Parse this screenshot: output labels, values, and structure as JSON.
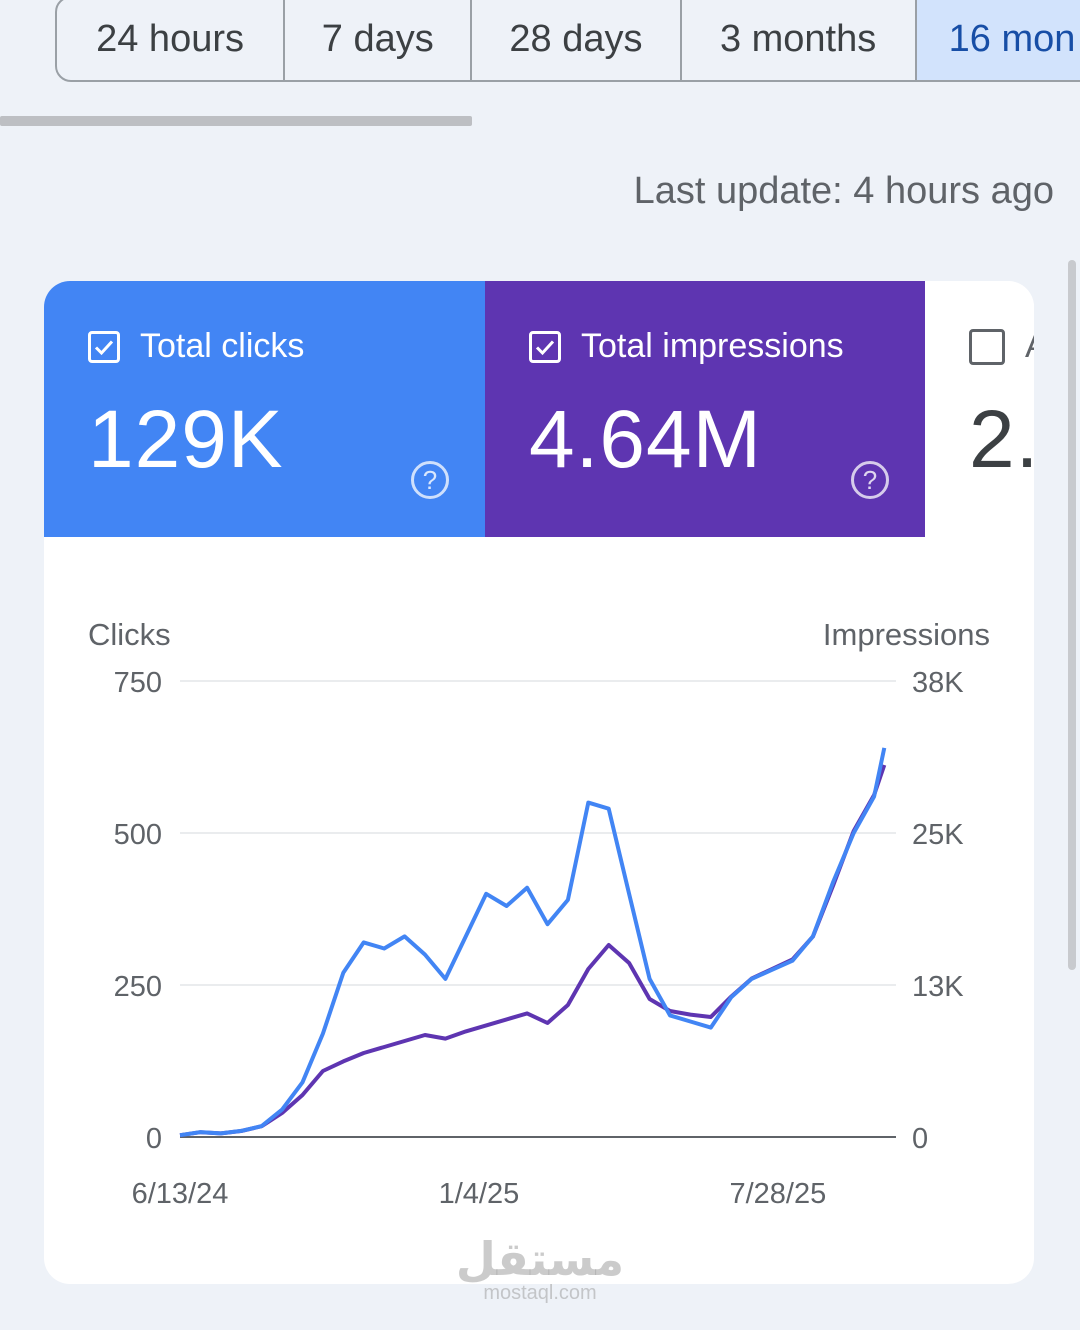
{
  "range_tabs": [
    {
      "label": "24 hours",
      "active": false
    },
    {
      "label": "7 days",
      "active": false
    },
    {
      "label": "28 days",
      "active": false
    },
    {
      "label": "3 months",
      "active": false
    },
    {
      "label": "16 mon",
      "active": true
    }
  ],
  "last_update": "Last update: 4 hours ago",
  "metrics": {
    "clicks": {
      "label": "Total clicks",
      "value": "129K",
      "checked": true,
      "color": "#4285f4"
    },
    "impressions": {
      "label": "Total impressions",
      "value": "4.64M",
      "checked": true,
      "color": "#5e35b1"
    },
    "third": {
      "label": "A",
      "value": "2.",
      "checked": false
    }
  },
  "chart_data": {
    "type": "line",
    "left_axis_title": "Clicks",
    "right_axis_title": "Impressions",
    "left_ticks": [
      "0",
      "250",
      "500",
      "750"
    ],
    "right_ticks": [
      "0",
      "13K",
      "25K",
      "38K"
    ],
    "ylim_left": [
      0,
      750
    ],
    "ylim_right": [
      0,
      38000
    ],
    "x_tick_labels": [
      "6/13/24",
      "1/4/25",
      "7/28/25"
    ],
    "x_tick_dates": [
      "2024-06-13",
      "2025-01-04",
      "2025-07-28"
    ],
    "grid": true,
    "series": [
      {
        "name": "Clicks",
        "axis": "left",
        "color": "#4285f4",
        "points": [
          [
            "2024-06-13",
            3
          ],
          [
            "2024-06-27",
            8
          ],
          [
            "2024-07-11",
            6
          ],
          [
            "2024-07-25",
            10
          ],
          [
            "2024-08-08",
            18
          ],
          [
            "2024-08-22",
            45
          ],
          [
            "2024-09-05",
            90
          ],
          [
            "2024-09-19",
            170
          ],
          [
            "2024-10-03",
            270
          ],
          [
            "2024-10-17",
            320
          ],
          [
            "2024-10-31",
            310
          ],
          [
            "2024-11-14",
            330
          ],
          [
            "2024-11-28",
            300
          ],
          [
            "2024-12-12",
            260
          ],
          [
            "2024-12-26",
            330
          ],
          [
            "2025-01-09",
            400
          ],
          [
            "2025-01-23",
            380
          ],
          [
            "2025-02-06",
            410
          ],
          [
            "2025-02-20",
            350
          ],
          [
            "2025-03-06",
            390
          ],
          [
            "2025-03-20",
            550
          ],
          [
            "2025-04-03",
            540
          ],
          [
            "2025-04-17",
            400
          ],
          [
            "2025-05-01",
            260
          ],
          [
            "2025-05-15",
            200
          ],
          [
            "2025-05-29",
            190
          ],
          [
            "2025-06-12",
            180
          ],
          [
            "2025-06-26",
            230
          ],
          [
            "2025-07-10",
            260
          ],
          [
            "2025-07-24",
            275
          ],
          [
            "2025-08-07",
            290
          ],
          [
            "2025-08-21",
            330
          ],
          [
            "2025-09-04",
            420
          ],
          [
            "2025-09-18",
            500
          ],
          [
            "2025-10-02",
            560
          ],
          [
            "2025-10-09",
            640
          ]
        ]
      },
      {
        "name": "Impressions",
        "axis": "right",
        "color": "#5e35b1",
        "points": [
          [
            "2024-06-13",
            150
          ],
          [
            "2024-06-27",
            400
          ],
          [
            "2024-07-11",
            300
          ],
          [
            "2024-07-25",
            500
          ],
          [
            "2024-08-08",
            900
          ],
          [
            "2024-08-22",
            2000
          ],
          [
            "2024-09-05",
            3500
          ],
          [
            "2024-09-19",
            5500
          ],
          [
            "2024-10-03",
            6300
          ],
          [
            "2024-10-17",
            7000
          ],
          [
            "2024-10-31",
            7500
          ],
          [
            "2024-11-14",
            8000
          ],
          [
            "2024-11-28",
            8500
          ],
          [
            "2024-12-12",
            8200
          ],
          [
            "2024-12-26",
            8800
          ],
          [
            "2025-01-09",
            9300
          ],
          [
            "2025-01-23",
            9800
          ],
          [
            "2025-02-06",
            10300
          ],
          [
            "2025-02-20",
            9500
          ],
          [
            "2025-03-06",
            11000
          ],
          [
            "2025-03-20",
            14000
          ],
          [
            "2025-04-03",
            16000
          ],
          [
            "2025-04-17",
            14500
          ],
          [
            "2025-05-01",
            11500
          ],
          [
            "2025-05-15",
            10500
          ],
          [
            "2025-05-29",
            10200
          ],
          [
            "2025-06-12",
            10000
          ],
          [
            "2025-06-26",
            11700
          ],
          [
            "2025-07-10",
            13200
          ],
          [
            "2025-07-24",
            14000
          ],
          [
            "2025-08-07",
            14800
          ],
          [
            "2025-08-21",
            16700
          ],
          [
            "2025-09-04",
            21000
          ],
          [
            "2025-09-18",
            25500
          ],
          [
            "2025-10-02",
            28500
          ],
          [
            "2025-10-09",
            31000
          ]
        ]
      }
    ]
  },
  "watermark": {
    "arabic": "مستقل",
    "latin": "mostaql.com"
  }
}
